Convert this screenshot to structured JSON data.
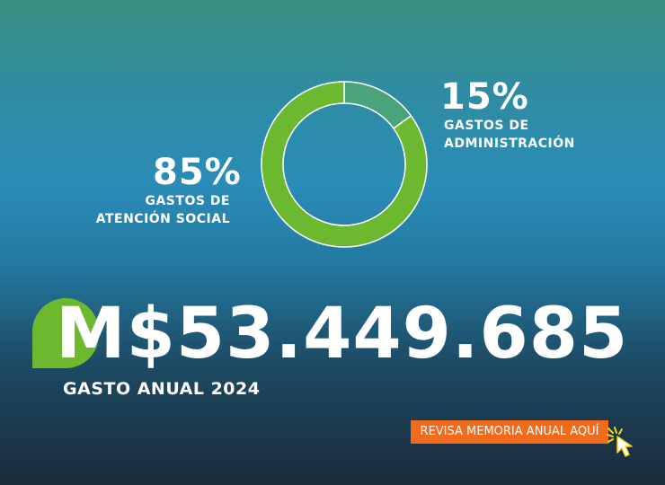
{
  "chart_data": {
    "type": "pie",
    "categories": [
      "GASTOS DE ADMINISTRACIÓN",
      "GASTOS DE ATENCIÓN SOCIAL"
    ],
    "values": [
      15,
      85
    ],
    "colors": [
      "#4aa37a",
      "#6cb82e"
    ]
  },
  "slices": [
    {
      "percent": "15%",
      "label_line1": "GASTOS DE",
      "label_line2": "ADMINISTRACIÓN"
    },
    {
      "percent": "85%",
      "label_line1": "GASTOS DE",
      "label_line2": "ATENCIÓN SOCIAL"
    }
  ],
  "amount": "M$53.449.685",
  "subtitle": "GASTO ANUAL 2024",
  "cta": {
    "label": "REVISA MEMORIA ANUAL AQUÍ",
    "color": "#f26a1b"
  },
  "icons": {
    "cursor": "pointer-hand-icon"
  }
}
